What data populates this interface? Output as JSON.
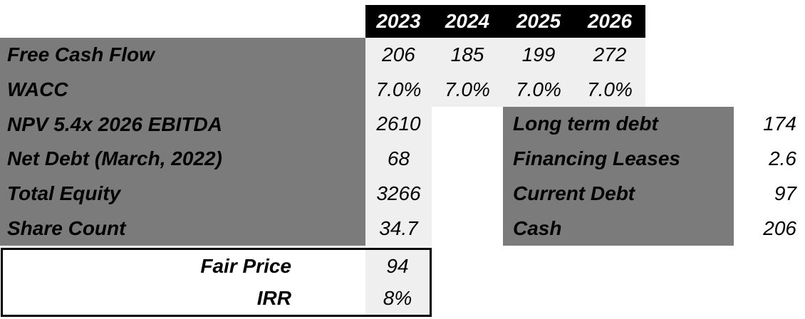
{
  "colors": {
    "header_bg": "#000000",
    "header_text": "#ffffff",
    "block_gray": "#7b7b7b",
    "value_bg": "#efefef",
    "text": "#000000"
  },
  "years": [
    "2023",
    "2024",
    "2025",
    "2026"
  ],
  "dcf_table": {
    "series_rows": [
      {
        "label": "Free Cash Flow",
        "values": [
          "206",
          "185",
          "199",
          "272"
        ]
      },
      {
        "label": "WACC",
        "values": [
          "7.0%",
          "7.0%",
          "7.0%",
          "7.0%"
        ]
      }
    ],
    "summary_rows": [
      {
        "label": "NPV 5.4x 2026 EBITDA",
        "value": "2610"
      },
      {
        "label": "Net Debt (March, 2022)",
        "value": "68"
      },
      {
        "label": "Total Equity",
        "value": "3266"
      },
      {
        "label": "Share Count",
        "value": "34.7"
      }
    ]
  },
  "debt_table": {
    "rows": [
      {
        "label": "Long term debt",
        "value": "174"
      },
      {
        "label": "Financing Leases",
        "value": "2.6"
      },
      {
        "label": "Current Debt",
        "value": "97"
      },
      {
        "label": "Cash",
        "value": "206"
      }
    ]
  },
  "result_box": {
    "rows": [
      {
        "label": "Fair Price",
        "value": "94"
      },
      {
        "label": "IRR",
        "value": "8%"
      }
    ]
  }
}
